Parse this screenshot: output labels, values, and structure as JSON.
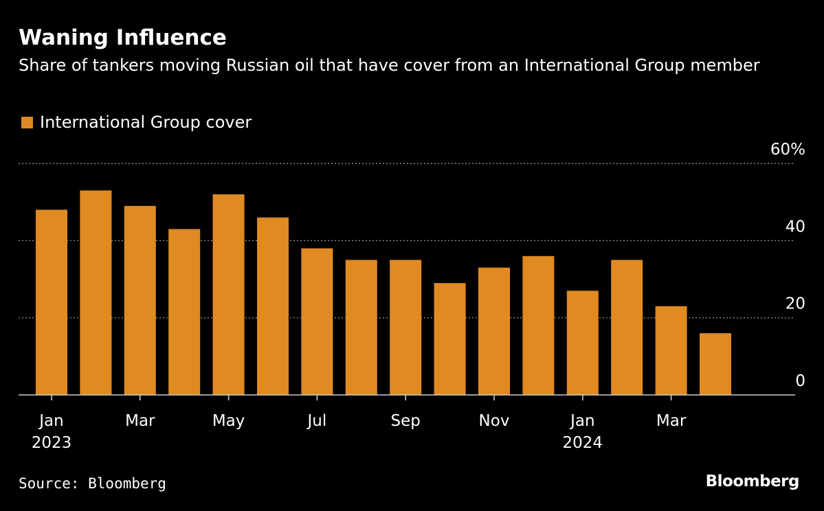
{
  "header": {
    "title": "Waning Influence",
    "subtitle": "Share of tankers moving Russian oil that have cover from an International Group member"
  },
  "legend": {
    "label": "International Group cover"
  },
  "colors": {
    "bar": "#e08a22",
    "grid": "#8a8a8a",
    "axis": "#cccccc",
    "text": "#ffffff",
    "background": "#000000"
  },
  "chart_data": {
    "type": "bar",
    "title": "Waning Influence",
    "subtitle": "Share of tankers moving Russian oil that have cover from an International Group member",
    "xlabel": "",
    "ylabel": "",
    "ylim": [
      0,
      60
    ],
    "grid": true,
    "legend_position": "top-left",
    "series": [
      {
        "name": "International Group cover",
        "values": [
          48,
          53,
          49,
          43,
          52,
          46,
          38,
          35,
          35,
          29,
          33,
          36,
          27,
          35,
          23,
          16
        ]
      }
    ],
    "categories": [
      "Jan 2023",
      "Feb 2023",
      "Mar 2023",
      "Apr 2023",
      "May 2023",
      "Jun 2023",
      "Jul 2023",
      "Aug 2023",
      "Sep 2023",
      "Oct 2023",
      "Nov 2023",
      "Dec 2023",
      "Jan 2024",
      "Feb 2024",
      "Mar 2024",
      "Apr 2024"
    ],
    "y_ticks": [
      {
        "value": 0,
        "label": "0"
      },
      {
        "value": 20,
        "label": "20"
      },
      {
        "value": 40,
        "label": "40"
      },
      {
        "value": 60,
        "label": "60%"
      }
    ],
    "x_ticks": [
      {
        "index": 0,
        "label": "Jan",
        "year": "2023"
      },
      {
        "index": 2,
        "label": "Mar",
        "year": ""
      },
      {
        "index": 4,
        "label": "May",
        "year": ""
      },
      {
        "index": 6,
        "label": "Jul",
        "year": ""
      },
      {
        "index": 8,
        "label": "Sep",
        "year": ""
      },
      {
        "index": 10,
        "label": "Nov",
        "year": ""
      },
      {
        "index": 12,
        "label": "Jan",
        "year": "2024"
      },
      {
        "index": 14,
        "label": "Mar",
        "year": ""
      }
    ]
  },
  "footer": {
    "source": "Source: Bloomberg",
    "brand": "Bloomberg"
  }
}
